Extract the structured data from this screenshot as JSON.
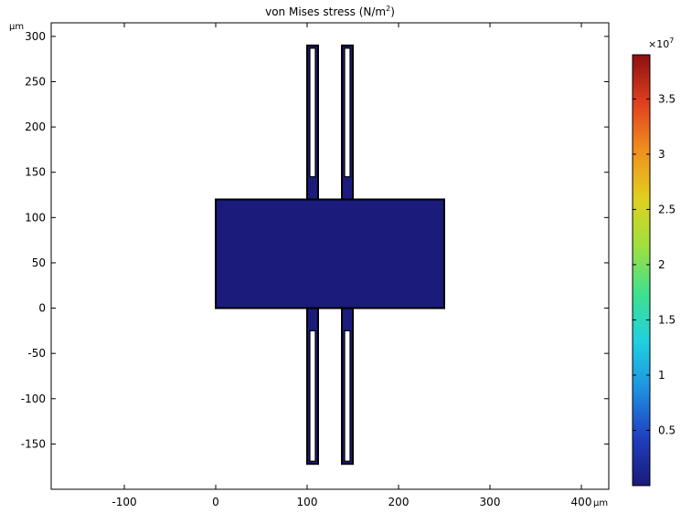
{
  "chart_data": {
    "type": "heatmap",
    "title": "von Mises stress (N/m²)",
    "title_main": "von Mises stress (N/m",
    "title_sup": "2",
    "title_end": ")",
    "xunit": "µm",
    "yunit": "µm",
    "xlim": [
      -180,
      430
    ],
    "ylim": [
      -200,
      315
    ],
    "xticks": [
      -100,
      0,
      100,
      200,
      300,
      400
    ],
    "xtick_labels": [
      "-100",
      "0",
      "100",
      "200",
      "300",
      "400"
    ],
    "yticks": [
      -150,
      -100,
      -50,
      0,
      50,
      100,
      150,
      200,
      250,
      300
    ],
    "ytick_labels": [
      "-150",
      "-100",
      "-50",
      "0",
      "50",
      "100",
      "150",
      "200",
      "250",
      "300"
    ],
    "colorbar": {
      "multiplier_label": "×10",
      "multiplier_exp": "7",
      "range": [
        0,
        3.9
      ],
      "ticks": [
        0.5,
        1,
        1.5,
        2,
        2.5,
        3,
        3.5
      ],
      "tick_labels": [
        "0.5",
        "1",
        "1.5",
        "2",
        "2.5",
        "3",
        "3.5"
      ],
      "colormap": "rainbow",
      "colors": [
        "#1a1a7a",
        "#1f3fbf",
        "#1f8fe0",
        "#1fd0e0",
        "#3fe08f",
        "#9fe03f",
        "#e0d01f",
        "#f08f1f",
        "#e03f1f",
        "#8a1010"
      ]
    },
    "shapes": {
      "fill_color": "#1b1b7b",
      "edge_color": "#000000",
      "mass": {
        "x": [
          0,
          250
        ],
        "y": [
          0,
          120
        ]
      },
      "beams": [
        {
          "x": [
            100,
            112
          ],
          "y": [
            120,
            290
          ]
        },
        {
          "x": [
            138,
            150
          ],
          "y": [
            120,
            290
          ]
        },
        {
          "x": [
            100,
            112
          ],
          "y": [
            -172,
            0
          ]
        },
        {
          "x": [
            138,
            150
          ],
          "y": [
            -172,
            0
          ]
        }
      ],
      "inner_slots": [
        {
          "x": [
            103,
            109
          ],
          "y": [
            145,
            287
          ]
        },
        {
          "x": [
            141,
            147
          ],
          "y": [
            145,
            287
          ]
        },
        {
          "x": [
            103,
            109
          ],
          "y": [
            -169,
            -25
          ]
        },
        {
          "x": [
            141,
            147
          ],
          "y": [
            -169,
            -25
          ]
        }
      ]
    }
  }
}
